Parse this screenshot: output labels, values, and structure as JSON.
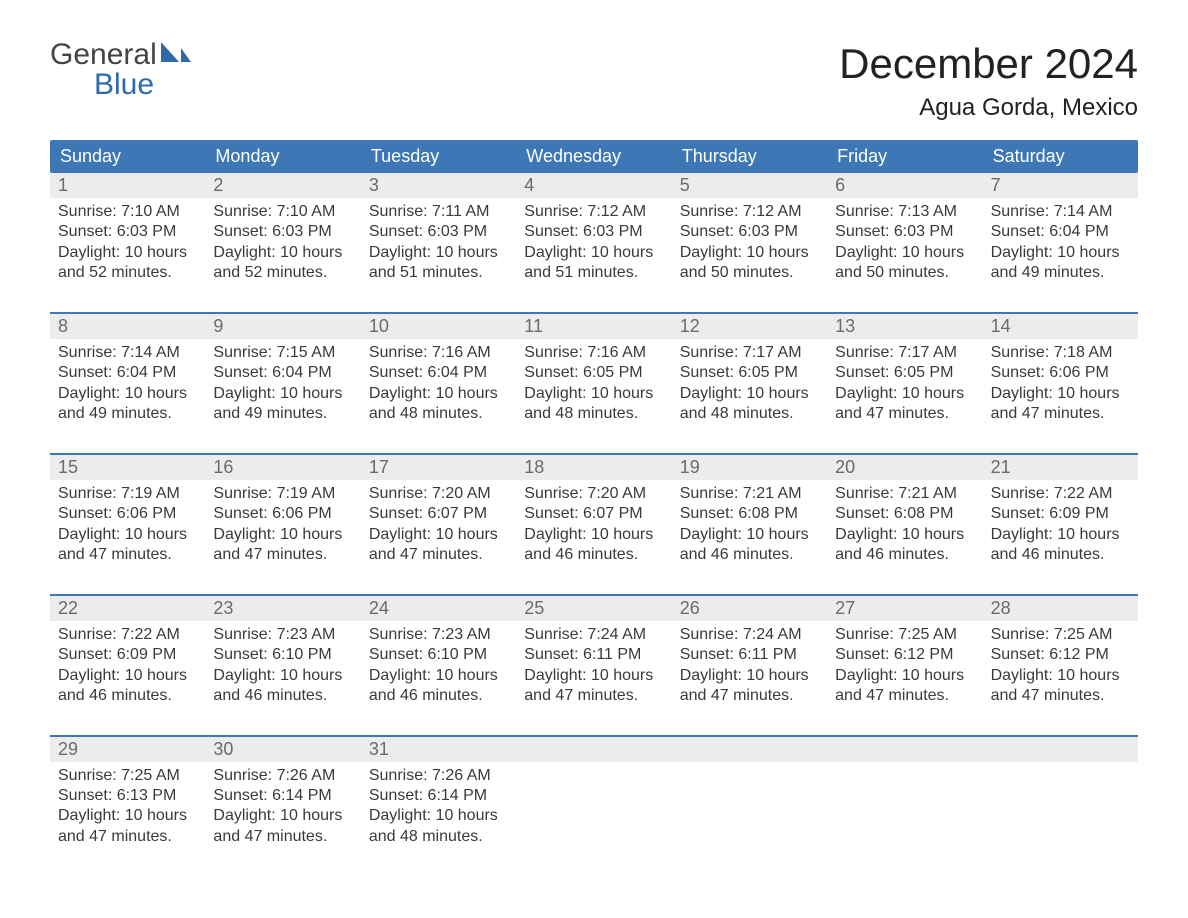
{
  "brand": {
    "word1": "General",
    "word2": "Blue",
    "accent_color": "#2c6aa8"
  },
  "title": "December 2024",
  "location": "Agua Gorda, Mexico",
  "colors": {
    "header_bg": "#3d77b6",
    "header_text": "#ffffff",
    "daynum_bg": "#ececec",
    "daynum_text": "#6b6b6b",
    "body_text": "#3a3a3a",
    "week_border": "#3d77b6",
    "page_bg": "#ffffff"
  },
  "typography": {
    "title_fontsize": 42,
    "location_fontsize": 24,
    "dayhead_fontsize": 18,
    "daynum_fontsize": 18,
    "body_fontsize": 16
  },
  "layout": {
    "columns": 7,
    "rows": 5
  },
  "day_headers": [
    "Sunday",
    "Monday",
    "Tuesday",
    "Wednesday",
    "Thursday",
    "Friday",
    "Saturday"
  ],
  "labels": {
    "sunrise": "Sunrise:",
    "sunset": "Sunset:",
    "daylight": "Daylight:"
  },
  "weeks": [
    [
      {
        "n": "1",
        "sunrise": "7:10 AM",
        "sunset": "6:03 PM",
        "daylight": "10 hours and 52 minutes."
      },
      {
        "n": "2",
        "sunrise": "7:10 AM",
        "sunset": "6:03 PM",
        "daylight": "10 hours and 52 minutes."
      },
      {
        "n": "3",
        "sunrise": "7:11 AM",
        "sunset": "6:03 PM",
        "daylight": "10 hours and 51 minutes."
      },
      {
        "n": "4",
        "sunrise": "7:12 AM",
        "sunset": "6:03 PM",
        "daylight": "10 hours and 51 minutes."
      },
      {
        "n": "5",
        "sunrise": "7:12 AM",
        "sunset": "6:03 PM",
        "daylight": "10 hours and 50 minutes."
      },
      {
        "n": "6",
        "sunrise": "7:13 AM",
        "sunset": "6:03 PM",
        "daylight": "10 hours and 50 minutes."
      },
      {
        "n": "7",
        "sunrise": "7:14 AM",
        "sunset": "6:04 PM",
        "daylight": "10 hours and 49 minutes."
      }
    ],
    [
      {
        "n": "8",
        "sunrise": "7:14 AM",
        "sunset": "6:04 PM",
        "daylight": "10 hours and 49 minutes."
      },
      {
        "n": "9",
        "sunrise": "7:15 AM",
        "sunset": "6:04 PM",
        "daylight": "10 hours and 49 minutes."
      },
      {
        "n": "10",
        "sunrise": "7:16 AM",
        "sunset": "6:04 PM",
        "daylight": "10 hours and 48 minutes."
      },
      {
        "n": "11",
        "sunrise": "7:16 AM",
        "sunset": "6:05 PM",
        "daylight": "10 hours and 48 minutes."
      },
      {
        "n": "12",
        "sunrise": "7:17 AM",
        "sunset": "6:05 PM",
        "daylight": "10 hours and 48 minutes."
      },
      {
        "n": "13",
        "sunrise": "7:17 AM",
        "sunset": "6:05 PM",
        "daylight": "10 hours and 47 minutes."
      },
      {
        "n": "14",
        "sunrise": "7:18 AM",
        "sunset": "6:06 PM",
        "daylight": "10 hours and 47 minutes."
      }
    ],
    [
      {
        "n": "15",
        "sunrise": "7:19 AM",
        "sunset": "6:06 PM",
        "daylight": "10 hours and 47 minutes."
      },
      {
        "n": "16",
        "sunrise": "7:19 AM",
        "sunset": "6:06 PM",
        "daylight": "10 hours and 47 minutes."
      },
      {
        "n": "17",
        "sunrise": "7:20 AM",
        "sunset": "6:07 PM",
        "daylight": "10 hours and 47 minutes."
      },
      {
        "n": "18",
        "sunrise": "7:20 AM",
        "sunset": "6:07 PM",
        "daylight": "10 hours and 46 minutes."
      },
      {
        "n": "19",
        "sunrise": "7:21 AM",
        "sunset": "6:08 PM",
        "daylight": "10 hours and 46 minutes."
      },
      {
        "n": "20",
        "sunrise": "7:21 AM",
        "sunset": "6:08 PM",
        "daylight": "10 hours and 46 minutes."
      },
      {
        "n": "21",
        "sunrise": "7:22 AM",
        "sunset": "6:09 PM",
        "daylight": "10 hours and 46 minutes."
      }
    ],
    [
      {
        "n": "22",
        "sunrise": "7:22 AM",
        "sunset": "6:09 PM",
        "daylight": "10 hours and 46 minutes."
      },
      {
        "n": "23",
        "sunrise": "7:23 AM",
        "sunset": "6:10 PM",
        "daylight": "10 hours and 46 minutes."
      },
      {
        "n": "24",
        "sunrise": "7:23 AM",
        "sunset": "6:10 PM",
        "daylight": "10 hours and 46 minutes."
      },
      {
        "n": "25",
        "sunrise": "7:24 AM",
        "sunset": "6:11 PM",
        "daylight": "10 hours and 47 minutes."
      },
      {
        "n": "26",
        "sunrise": "7:24 AM",
        "sunset": "6:11 PM",
        "daylight": "10 hours and 47 minutes."
      },
      {
        "n": "27",
        "sunrise": "7:25 AM",
        "sunset": "6:12 PM",
        "daylight": "10 hours and 47 minutes."
      },
      {
        "n": "28",
        "sunrise": "7:25 AM",
        "sunset": "6:12 PM",
        "daylight": "10 hours and 47 minutes."
      }
    ],
    [
      {
        "n": "29",
        "sunrise": "7:25 AM",
        "sunset": "6:13 PM",
        "daylight": "10 hours and 47 minutes."
      },
      {
        "n": "30",
        "sunrise": "7:26 AM",
        "sunset": "6:14 PM",
        "daylight": "10 hours and 47 minutes."
      },
      {
        "n": "31",
        "sunrise": "7:26 AM",
        "sunset": "6:14 PM",
        "daylight": "10 hours and 48 minutes."
      },
      null,
      null,
      null,
      null
    ]
  ]
}
